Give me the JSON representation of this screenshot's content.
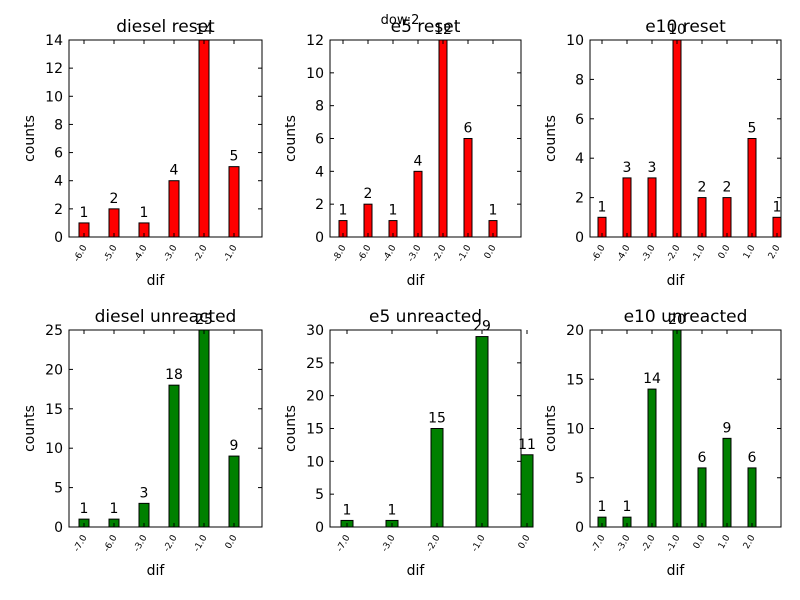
{
  "suptitle": "dow:2",
  "chart_data": [
    {
      "type": "bar",
      "title": "diesel reset",
      "xlabel": "dif",
      "ylabel": "counts",
      "categories": [
        "-6.0",
        "-5.0",
        "-4.0",
        "-3.0",
        "-2.0",
        "-1.0"
      ],
      "values": [
        1,
        2,
        1,
        4,
        14,
        5
      ],
      "ylim": [
        0,
        14
      ],
      "yticks": [
        "0",
        "2",
        "4",
        "6",
        "8",
        "10",
        "12",
        "14"
      ],
      "color": "#ff0000"
    },
    {
      "type": "bar",
      "title": "e5 reset",
      "xlabel": "dif",
      "ylabel": "counts",
      "categories": [
        "-8.0",
        "-6.0",
        "-4.0",
        "-3.0",
        "-2.0",
        "-1.0",
        "0.0"
      ],
      "values": [
        1,
        2,
        1,
        4,
        12,
        6,
        1
      ],
      "ylim": [
        0,
        12
      ],
      "yticks": [
        "0",
        "2",
        "4",
        "6",
        "8",
        "10",
        "12"
      ],
      "color": "#ff0000"
    },
    {
      "type": "bar",
      "title": "e10 reset",
      "xlabel": "dif",
      "ylabel": "counts",
      "categories": [
        "-6.0",
        "-4.0",
        "-3.0",
        "-2.0",
        "-1.0",
        "0.0",
        "1.0",
        "2.0"
      ],
      "values": [
        1,
        3,
        3,
        10,
        2,
        2,
        5,
        1
      ],
      "ylim": [
        0,
        10
      ],
      "yticks": [
        "0",
        "2",
        "4",
        "6",
        "8",
        "10"
      ],
      "color": "#ff0000"
    },
    {
      "type": "bar",
      "title": "diesel unreacted",
      "xlabel": "dif",
      "ylabel": "counts",
      "categories": [
        "-7.0",
        "-6.0",
        "-3.0",
        "-2.0",
        "-1.0",
        "0.0"
      ],
      "values": [
        1,
        1,
        3,
        18,
        25,
        9
      ],
      "ylim": [
        0,
        25
      ],
      "yticks": [
        "0",
        "5",
        "10",
        "15",
        "20",
        "25"
      ],
      "color": "#008000"
    },
    {
      "type": "bar",
      "title": "e5 unreacted",
      "xlabel": "dif",
      "ylabel": "counts",
      "categories": [
        "-7.0",
        "-3.0",
        "-2.0",
        "-1.0",
        "0.0"
      ],
      "values": [
        1,
        1,
        15,
        29,
        11
      ],
      "ylim": [
        0,
        30
      ],
      "yticks": [
        "0",
        "5",
        "10",
        "15",
        "20",
        "25",
        "30"
      ],
      "color": "#008000"
    },
    {
      "type": "bar",
      "title": "e10 unreacted",
      "xlabel": "dif",
      "ylabel": "counts",
      "categories": [
        "-7.0",
        "-3.0",
        "-2.0",
        "-1.0",
        "0.0",
        "1.0",
        "2.0"
      ],
      "values": [
        1,
        1,
        14,
        20,
        6,
        9,
        6
      ],
      "ylim": [
        0,
        20
      ],
      "yticks": [
        "0",
        "5",
        "10",
        "15",
        "20"
      ],
      "color": "#008000"
    }
  ]
}
